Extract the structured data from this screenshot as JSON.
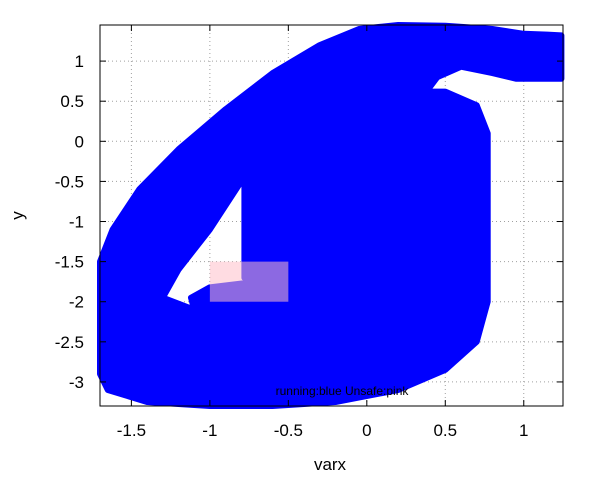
{
  "chart_data": {
    "type": "area",
    "title": "",
    "xlabel": "varx",
    "ylabel": "y",
    "xlim": [
      -1.7,
      1.25
    ],
    "ylim": [
      -3.3,
      1.45
    ],
    "xticks": [
      -1.5,
      -1,
      -0.5,
      0,
      0.5,
      1
    ],
    "xtick_labels": [
      "-1.5",
      "-1",
      "-0.5",
      "0",
      "0.5",
      "1"
    ],
    "yticks": [
      -3,
      -2.5,
      -2,
      -1.5,
      -1,
      -0.5,
      0,
      0.5,
      1
    ],
    "ytick_labels": [
      "-3",
      "-2.5",
      "-2",
      "-1.5",
      "-1",
      "-0.5",
      "0",
      "0.5",
      "1"
    ],
    "grid": true,
    "annotation": "running:blue Unsafe:pink",
    "colors": {
      "running": "#0000ff",
      "unsafe": "#ffc0cb"
    },
    "regions": [
      {
        "name": "running",
        "color": "#0000ff",
        "outer": [
          [
            1.24,
            1.32
          ],
          [
            1.15,
            1.33
          ],
          [
            1.0,
            1.34
          ],
          [
            0.8,
            1.4
          ],
          [
            0.5,
            1.44
          ],
          [
            0.2,
            1.45
          ],
          [
            -0.05,
            1.4
          ],
          [
            -0.3,
            1.2
          ],
          [
            -0.6,
            0.85
          ],
          [
            -0.9,
            0.4
          ],
          [
            -1.2,
            -0.1
          ],
          [
            -1.45,
            -0.6
          ],
          [
            -1.62,
            -1.1
          ],
          [
            -1.7,
            -1.5
          ],
          [
            -1.7,
            -2.9
          ],
          [
            -1.65,
            -3.1
          ],
          [
            -1.4,
            -3.25
          ],
          [
            -1.0,
            -3.3
          ],
          [
            -0.6,
            -3.3
          ],
          [
            -0.2,
            -3.25
          ],
          [
            0.2,
            -3.1
          ],
          [
            0.5,
            -2.85
          ],
          [
            0.7,
            -2.5
          ],
          [
            0.77,
            -2.0
          ],
          [
            0.77,
            0.1
          ],
          [
            0.7,
            0.45
          ],
          [
            0.5,
            0.62
          ],
          [
            0.38,
            0.62
          ],
          [
            0.45,
            0.8
          ],
          [
            0.6,
            0.93
          ],
          [
            0.8,
            0.85
          ],
          [
            0.95,
            0.78
          ],
          [
            1.24,
            0.78
          ]
        ],
        "hole": [
          [
            -0.78,
            -0.35
          ],
          [
            -0.78,
            -1.7
          ],
          [
            -0.7,
            -1.75
          ],
          [
            -1.0,
            -1.82
          ],
          [
            -1.12,
            -1.95
          ],
          [
            -1.1,
            -2.1
          ],
          [
            -1.3,
            -1.95
          ],
          [
            -1.2,
            -1.6
          ],
          [
            -1.0,
            -1.1
          ],
          [
            -0.8,
            -0.5
          ]
        ]
      },
      {
        "name": "unsafe",
        "color": "#ffc0cb",
        "rect": {
          "x": [
            -1.0,
            -0.5
          ],
          "y": [
            -2.0,
            -1.5
          ]
        }
      }
    ]
  }
}
